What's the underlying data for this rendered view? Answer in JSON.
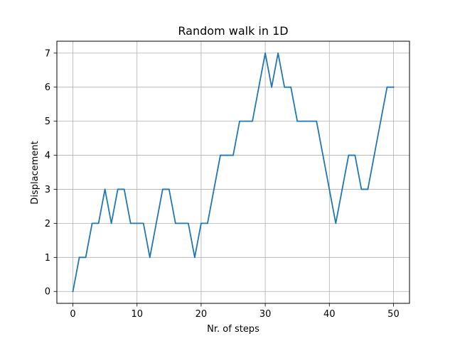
{
  "chart_data": {
    "type": "line",
    "title": "Random walk in 1D",
    "xlabel": "Nr. of steps",
    "ylabel": "Displacement",
    "xlim": [
      -2.5,
      52.5
    ],
    "ylim": [
      -0.35,
      7.35
    ],
    "xticks": [
      0,
      10,
      20,
      30,
      40,
      50
    ],
    "yticks": [
      0,
      1,
      2,
      3,
      4,
      5,
      6,
      7
    ],
    "grid": true,
    "colors": {
      "line": "#1f77b4",
      "grid": "#b0b0b0"
    },
    "series": [
      {
        "x": [
          0,
          1,
          2,
          3,
          4,
          5,
          6,
          7,
          8,
          9,
          10,
          11,
          12,
          13,
          14,
          15,
          16,
          17,
          18,
          19,
          20,
          21,
          22,
          23,
          24,
          25,
          26,
          27,
          28,
          29,
          30,
          31,
          32,
          33,
          34,
          35,
          36,
          37,
          38,
          39,
          40,
          41,
          42,
          43,
          44,
          45,
          46,
          47,
          48,
          49,
          50
        ],
        "y": [
          0,
          1,
          1,
          2,
          2,
          3,
          2,
          3,
          3,
          2,
          2,
          2,
          1,
          2,
          3,
          3,
          2,
          2,
          2,
          1,
          2,
          2,
          3,
          4,
          4,
          4,
          5,
          5,
          5,
          6,
          7,
          6,
          7,
          6,
          6,
          5,
          5,
          5,
          5,
          4,
          3,
          2,
          3,
          4,
          4,
          3,
          3,
          4,
          5,
          6,
          6
        ]
      }
    ]
  }
}
